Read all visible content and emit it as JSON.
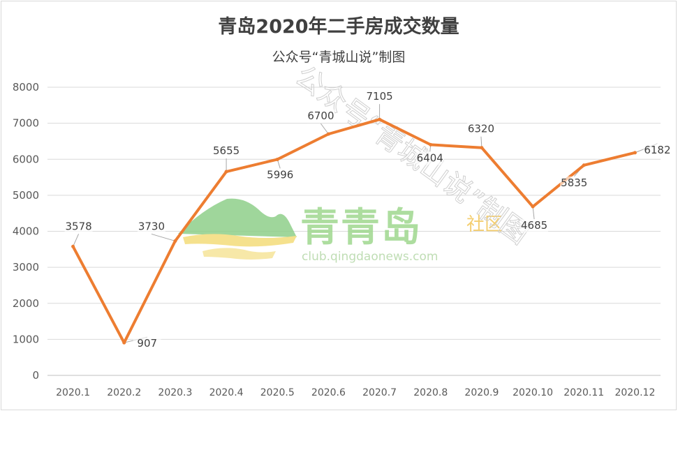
{
  "chart_data": {
    "type": "line",
    "title": "青岛2020年二手房成交数量",
    "subtitle": "公众号“青城山说”制图",
    "categories": [
      "2020.1",
      "2020.2",
      "2020.3",
      "2020.4",
      "2020.5",
      "2020.6",
      "2020.7",
      "2020.8",
      "2020.9",
      "2020.10",
      "2020.11",
      "2020.12"
    ],
    "series": [
      {
        "values": [
          3578,
          907,
          3730,
          5655,
          5996,
          6700,
          7105,
          6404,
          6320,
          4685,
          5835,
          6182
        ]
      }
    ],
    "data_labels": [
      "3578",
      "907",
      "3730",
      "5655",
      "5996",
      "6700",
      "7105",
      "6404",
      "6320",
      "4685",
      "5835",
      "6182"
    ],
    "y_ticks": [
      "0",
      "1000",
      "2000",
      "3000",
      "4000",
      "5000",
      "6000",
      "7000",
      "8000"
    ],
    "ylim": [
      0,
      8000
    ],
    "grid": true,
    "legend": "none",
    "line_color": "#ed7d31"
  },
  "watermark": {
    "brand": "青青岛",
    "tag": "社区",
    "url": "club.qingdaonews.com",
    "diagonal_text": "公众号“青城山说”制图"
  }
}
